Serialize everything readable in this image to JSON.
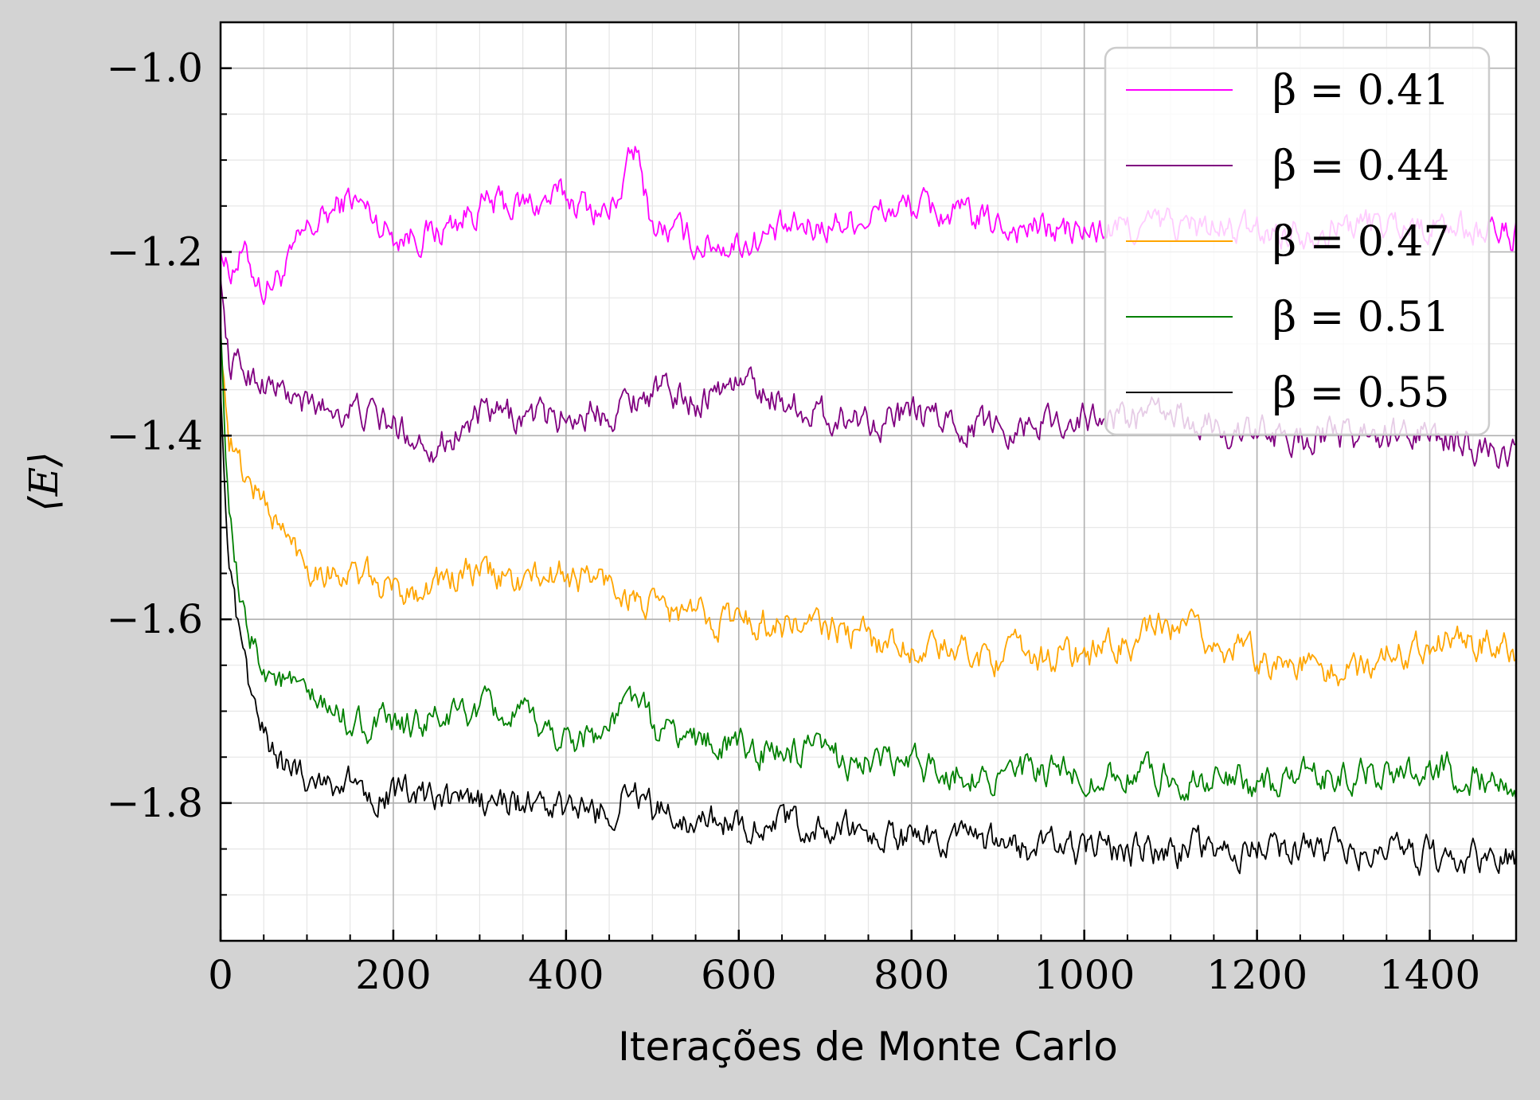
{
  "chart_data": {
    "type": "line",
    "xlabel": "Iterações de Monte Carlo",
    "ylabel": "⟨E⟩",
    "xlim": [
      0,
      1500
    ],
    "ylim": [
      -1.95,
      -0.95
    ],
    "x_ticks": [
      0,
      200,
      400,
      600,
      800,
      1000,
      1200,
      1400
    ],
    "x_tick_labels": [
      "0",
      "200",
      "400",
      "600",
      "800",
      "1000",
      "1200",
      "1400"
    ],
    "y_ticks": [
      -1.0,
      -1.2,
      -1.4,
      -1.6,
      -1.8
    ],
    "y_tick_labels": [
      "−1.0",
      "−1.2",
      "−1.4",
      "−1.6",
      "−1.8"
    ],
    "grid": true,
    "legend_position": "top-right",
    "series": [
      {
        "name": "β = 0.41",
        "color": "#ff00ff",
        "x": [
          0,
          10,
          25,
          50,
          75,
          100,
          150,
          200,
          250,
          300,
          350,
          400,
          450,
          480,
          500,
          550,
          600,
          700,
          800,
          900,
          1000,
          1100,
          1200,
          1300,
          1400,
          1500
        ],
        "values": [
          -1.2,
          -1.22,
          -1.2,
          -1.24,
          -1.22,
          -1.18,
          -1.14,
          -1.18,
          -1.18,
          -1.15,
          -1.15,
          -1.14,
          -1.16,
          -1.09,
          -1.17,
          -1.19,
          -1.19,
          -1.17,
          -1.15,
          -1.17,
          -1.18,
          -1.17,
          -1.18,
          -1.17,
          -1.17,
          -1.18
        ]
      },
      {
        "name": "β = 0.44",
        "color": "#800080",
        "x": [
          0,
          10,
          50,
          100,
          150,
          200,
          250,
          300,
          350,
          400,
          450,
          500,
          550,
          600,
          700,
          800,
          900,
          1000,
          1100,
          1200,
          1300,
          1400,
          1500
        ],
        "values": [
          -1.23,
          -1.32,
          -1.34,
          -1.37,
          -1.37,
          -1.39,
          -1.41,
          -1.38,
          -1.38,
          -1.38,
          -1.37,
          -1.35,
          -1.36,
          -1.34,
          -1.38,
          -1.38,
          -1.39,
          -1.38,
          -1.38,
          -1.4,
          -1.4,
          -1.4,
          -1.42
        ]
      },
      {
        "name": "β = 0.47",
        "color": "#ffa500",
        "x": [
          0,
          10,
          25,
          50,
          75,
          100,
          150,
          200,
          250,
          300,
          350,
          400,
          450,
          500,
          600,
          700,
          800,
          900,
          1000,
          1100,
          1200,
          1300,
          1400,
          1500
        ],
        "values": [
          -1.3,
          -1.4,
          -1.44,
          -1.47,
          -1.51,
          -1.54,
          -1.55,
          -1.57,
          -1.56,
          -1.55,
          -1.56,
          -1.55,
          -1.56,
          -1.59,
          -1.6,
          -1.61,
          -1.63,
          -1.64,
          -1.64,
          -1.61,
          -1.64,
          -1.66,
          -1.62,
          -1.63
        ]
      },
      {
        "name": "β = 0.51",
        "color": "#008000",
        "x": [
          0,
          10,
          25,
          50,
          75,
          100,
          150,
          200,
          250,
          300,
          350,
          400,
          450,
          480,
          500,
          600,
          700,
          800,
          900,
          1000,
          1100,
          1200,
          1300,
          1400,
          1500
        ],
        "values": [
          -1.28,
          -1.5,
          -1.6,
          -1.65,
          -1.67,
          -1.69,
          -1.71,
          -1.72,
          -1.71,
          -1.7,
          -1.71,
          -1.73,
          -1.72,
          -1.68,
          -1.72,
          -1.74,
          -1.75,
          -1.76,
          -1.77,
          -1.77,
          -1.77,
          -1.78,
          -1.77,
          -1.76,
          -1.78
        ]
      },
      {
        "name": "β = 0.55",
        "color": "#000000",
        "x": [
          0,
          10,
          25,
          50,
          75,
          100,
          150,
          200,
          250,
          300,
          350,
          400,
          450,
          480,
          500,
          600,
          700,
          800,
          900,
          1000,
          1100,
          1200,
          1300,
          1400,
          1500
        ],
        "values": [
          -1.35,
          -1.55,
          -1.65,
          -1.73,
          -1.76,
          -1.77,
          -1.78,
          -1.79,
          -1.8,
          -1.8,
          -1.8,
          -1.81,
          -1.81,
          -1.78,
          -1.81,
          -1.82,
          -1.83,
          -1.84,
          -1.85,
          -1.85,
          -1.85,
          -1.85,
          -1.85,
          -1.86,
          -1.86
        ]
      }
    ]
  }
}
